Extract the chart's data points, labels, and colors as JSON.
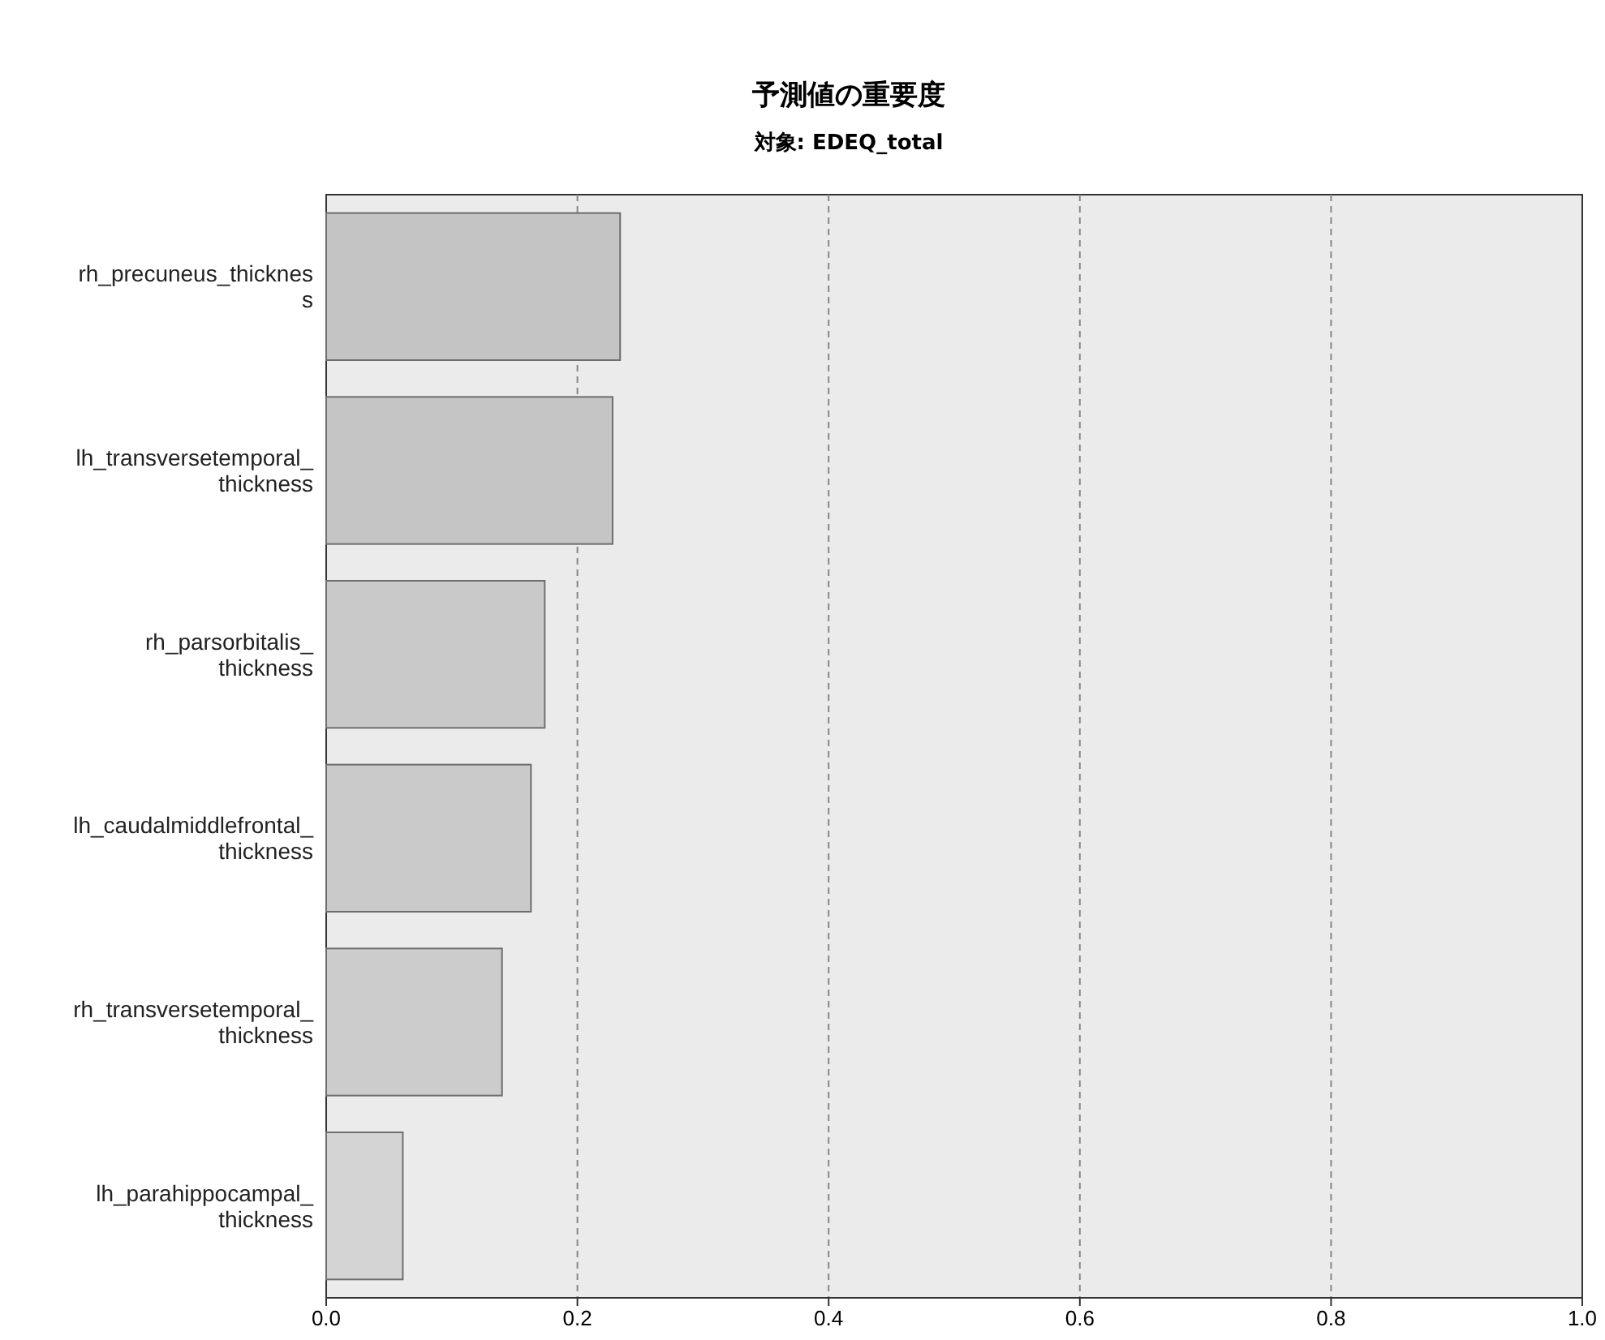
{
  "chart_data": {
    "type": "bar",
    "orientation": "horizontal",
    "title": "予測値の重要度",
    "subtitle": "対象: EDEQ_total",
    "categories": [
      "rh_precuneus_thicknes\ns",
      "lh_transversetemporal_\nthickness",
      "rh_parsorbitalis_\nthickness",
      "lh_caudalmiddlefrontal_\nthickness",
      "rh_transversetemporal_\nthickness",
      "lh_parahippocampal_\nthickness"
    ],
    "values": [
      0.234,
      0.228,
      0.174,
      0.163,
      0.14,
      0.061
    ],
    "colors": [
      "#c4c4c4",
      "#c5c5c5",
      "#c9c9c9",
      "#cacaca",
      "#cccccc",
      "#d4d4d4"
    ],
    "xlim": [
      0,
      1
    ],
    "xticks": [
      {
        "value": 0,
        "label": "0.0"
      },
      {
        "value": 0.2,
        "label": "0.2"
      },
      {
        "value": 0.4,
        "label": "0.4"
      },
      {
        "value": 0.6,
        "label": "0.6"
      },
      {
        "value": 0.8,
        "label": "0.8"
      },
      {
        "value": 1,
        "label": "1.0"
      }
    ],
    "grid": "x"
  }
}
